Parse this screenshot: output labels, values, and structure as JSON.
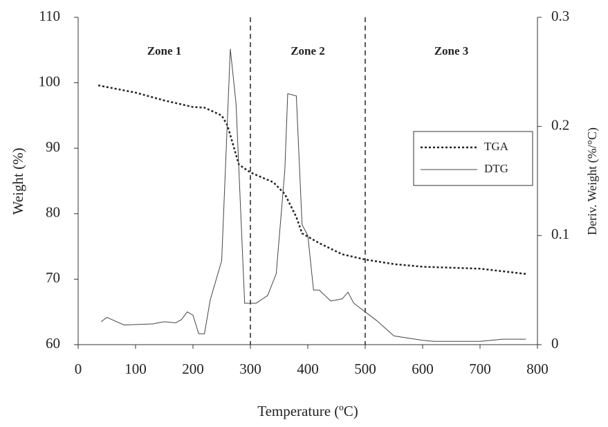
{
  "chart_data": {
    "type": "line",
    "xlabel": "Temperature (ºC)",
    "ylabel": "Weight (%)",
    "y2label": "Deriv. Weight (%/°C)",
    "xlim": [
      0,
      800
    ],
    "xticks": [
      0,
      100,
      200,
      300,
      400,
      500,
      600,
      700,
      800
    ],
    "ylim": [
      60,
      110
    ],
    "yticks": [
      60,
      70,
      80,
      90,
      100,
      110
    ],
    "y2lim": [
      0,
      0.3
    ],
    "y2ticks": [
      0,
      0.1,
      0.2,
      0.3
    ],
    "vlines": [
      300,
      500
    ],
    "annotations": [
      "Zone 1",
      "Zone 2",
      "Zone 3"
    ],
    "legend": "right",
    "series": [
      {
        "name": "TGA",
        "color": "#222222",
        "dash": true,
        "x": [
          35,
          100,
          150,
          200,
          220,
          250,
          260,
          280,
          300,
          340,
          360,
          380,
          390,
          420,
          460,
          500,
          550,
          600,
          700,
          780
        ],
        "values": [
          99.6,
          98.5,
          97.3,
          96.3,
          96.2,
          95,
          93.5,
          87.5,
          86.3,
          84.8,
          83,
          79.5,
          77,
          75.5,
          73.8,
          73,
          72.3,
          71.9,
          71.6,
          70.8
        ]
      },
      {
        "name": "DTG",
        "color": "#444444",
        "dash": false,
        "axis": "y2",
        "x": [
          40,
          50,
          80,
          130,
          150,
          170,
          180,
          190,
          200,
          210,
          220,
          230,
          250,
          265,
          275,
          290,
          310,
          330,
          345,
          360,
          365,
          380,
          390,
          400,
          410,
          420,
          440,
          460,
          470,
          480,
          500,
          520,
          550,
          600,
          620,
          700,
          740,
          780
        ],
        "values": [
          0.021,
          0.025,
          0.018,
          0.019,
          0.021,
          0.02,
          0.023,
          0.03,
          0.027,
          0.01,
          0.01,
          0.041,
          0.077,
          0.271,
          0.221,
          0.038,
          0.038,
          0.045,
          0.065,
          0.16,
          0.23,
          0.228,
          0.11,
          0.1,
          0.05,
          0.05,
          0.04,
          0.042,
          0.048,
          0.038,
          0.03,
          0.022,
          0.008,
          0.004,
          0.003,
          0.003,
          0.005,
          0.005
        ]
      }
    ]
  }
}
